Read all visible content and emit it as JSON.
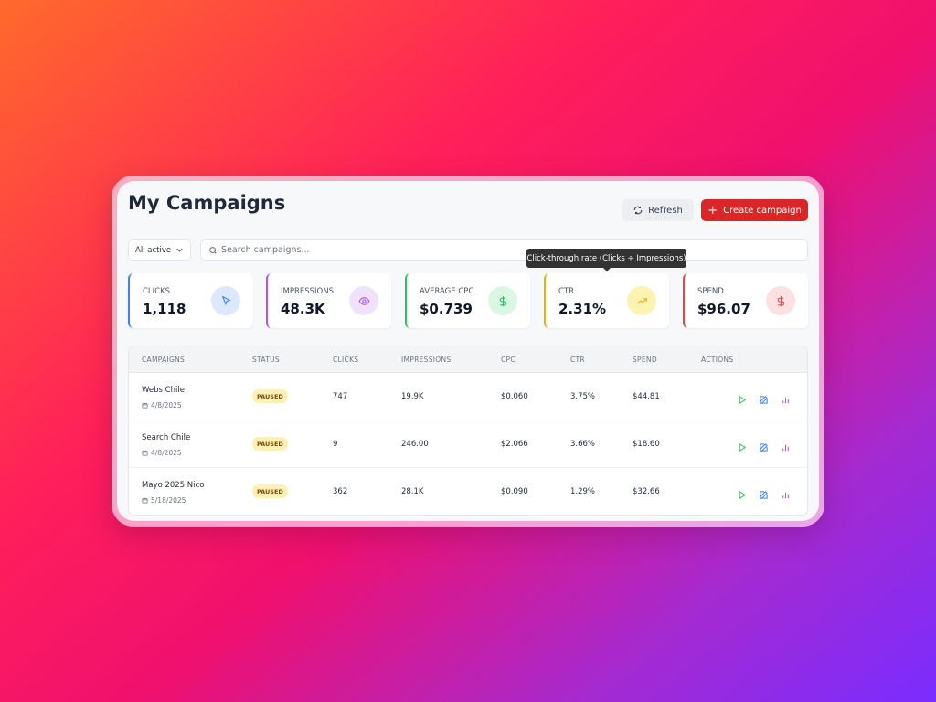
{
  "header": {
    "title": "My Campaigns",
    "refresh": "Refresh",
    "create": "Create campaign"
  },
  "filter": "All active",
  "search_placeholder": "Search campaigns...",
  "tooltip": "Click-through rate (Clicks ÷ Impressions)",
  "stats": [
    {
      "label": "CLICKS",
      "value": "1,118"
    },
    {
      "label": "IMPRESSIONS",
      "value": "48.3K"
    },
    {
      "label": "AVERAGE CPC",
      "value": "$0.739"
    },
    {
      "label": "CTR",
      "value": "2.31%"
    },
    {
      "label": "SPEND",
      "value": "$96.07"
    }
  ],
  "table": {
    "columns": [
      "CAMPAIGNS",
      "STATUS",
      "CLICKS",
      "IMPRESSIONS",
      "CPC",
      "CTR",
      "SPEND",
      "ACTIONS"
    ],
    "rows": [
      {
        "name": "Webs Chile",
        "date": "4/8/2025",
        "status": "PAUSED",
        "clicks": "747",
        "impressions": "19.9K",
        "cpc": "$0.060",
        "ctr": "3.75%",
        "spend": "$44.81"
      },
      {
        "name": "Search Chile",
        "date": "4/8/2025",
        "status": "PAUSED",
        "clicks": "9",
        "impressions": "246.00",
        "cpc": "$2.066",
        "ctr": "3.66%",
        "spend": "$18.60"
      },
      {
        "name": "Mayo 2025 Nico",
        "date": "5/18/2025",
        "status": "PAUSED",
        "clicks": "362",
        "impressions": "28.1K",
        "cpc": "$0.090",
        "ctr": "1.29%",
        "spend": "$32.66"
      }
    ]
  }
}
